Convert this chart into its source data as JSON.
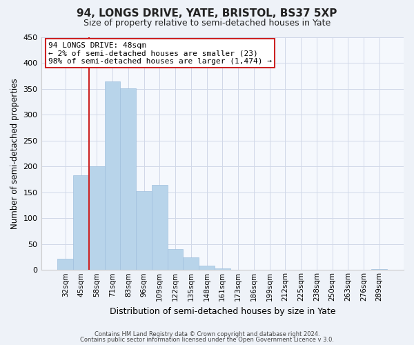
{
  "title": "94, LONGS DRIVE, YATE, BRISTOL, BS37 5XP",
  "subtitle": "Size of property relative to semi-detached houses in Yate",
  "xlabel": "Distribution of semi-detached houses by size in Yate",
  "ylabel": "Number of semi-detached properties",
  "bin_labels": [
    "32sqm",
    "45sqm",
    "58sqm",
    "71sqm",
    "83sqm",
    "96sqm",
    "109sqm",
    "122sqm",
    "135sqm",
    "148sqm",
    "161sqm",
    "173sqm",
    "186sqm",
    "199sqm",
    "212sqm",
    "225sqm",
    "238sqm",
    "250sqm",
    "263sqm",
    "276sqm",
    "289sqm"
  ],
  "bar_values": [
    22,
    183,
    201,
    364,
    351,
    152,
    164,
    40,
    25,
    9,
    3,
    0,
    1,
    0,
    0,
    0,
    0,
    0,
    0,
    0,
    2
  ],
  "bar_color": "#b8d4ea",
  "bar_edge_color": "#a0c0de",
  "annotation_title": "94 LONGS DRIVE: 48sqm",
  "annotation_line1": "← 2% of semi-detached houses are smaller (23)",
  "annotation_line2": "98% of semi-detached houses are larger (1,474) →",
  "ylim": [
    0,
    450
  ],
  "yticks": [
    0,
    50,
    100,
    150,
    200,
    250,
    300,
    350,
    400,
    450
  ],
  "property_line_x": 1.5,
  "footer1": "Contains HM Land Registry data © Crown copyright and database right 2024.",
  "footer2": "Contains public sector information licensed under the Open Government Licence v 3.0.",
  "background_color": "#eef2f8",
  "plot_background_color": "#f5f8fd",
  "grid_color": "#d0d8e8",
  "red_color": "#cc2222",
  "title_fontsize": 11,
  "subtitle_fontsize": 9
}
